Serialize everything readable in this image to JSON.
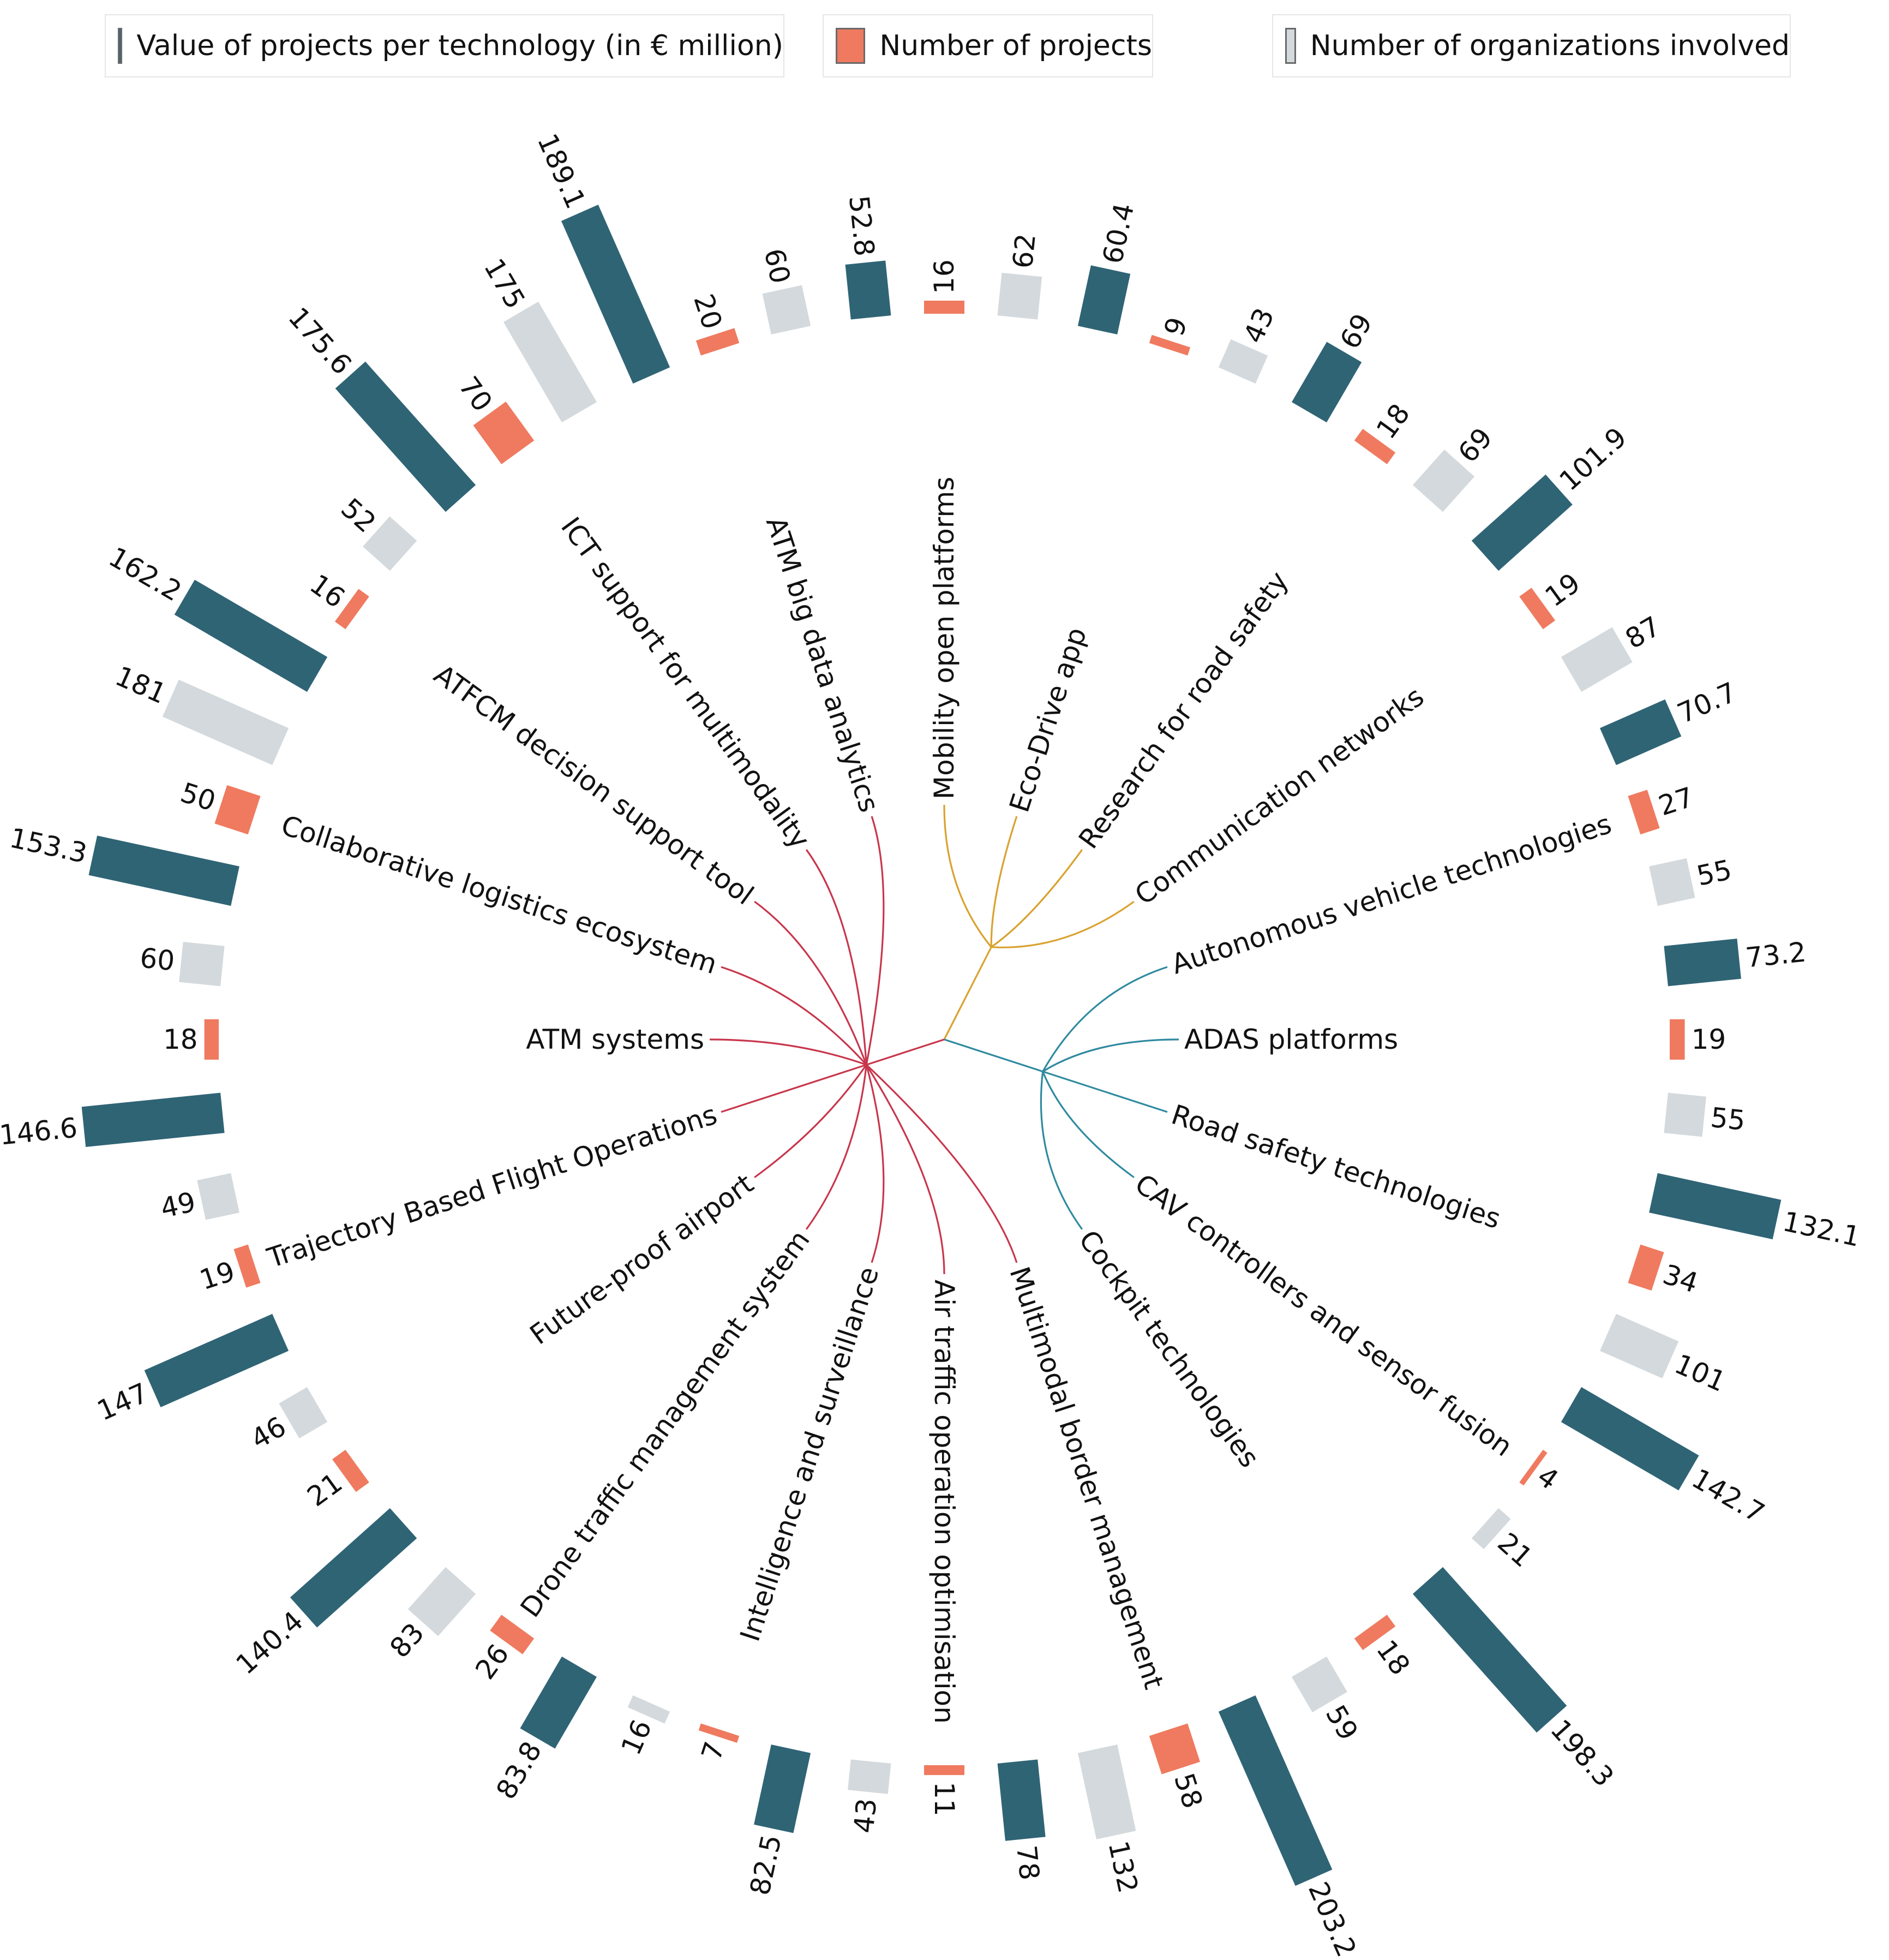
{
  "legend": {
    "value": "Value of projects per technology (in € million)",
    "projects": "Number of projects",
    "organizations": "Number of organizations involved"
  },
  "colors": {
    "value": "#2f6475",
    "projects": "#ef7a5f",
    "organizations": "#d3d9dc",
    "red_group": "#c8364c",
    "yellow_group": "#d9a22f",
    "teal_group": "#2f8aa0"
  },
  "chart_data": {
    "type": "radial-bar",
    "series": [
      {
        "name": "Value of projects per technology (in € million)",
        "key": "value"
      },
      {
        "name": "Number of projects",
        "key": "projects"
      },
      {
        "name": "Number of organizations involved",
        "key": "organizations"
      }
    ],
    "categories": [
      {
        "label": "Mobility open platforms",
        "group": "yellow",
        "value": 52.8,
        "projects": 16,
        "organizations": 62,
        "value_label": "52.8",
        "projects_label": "16",
        "organizations_label": "62"
      },
      {
        "label": "Eco-Drive app",
        "group": "yellow",
        "value": 60.4,
        "projects": 9,
        "organizations": 43,
        "value_label": "60.4",
        "projects_label": "9",
        "organizations_label": "43"
      },
      {
        "label": "Research for road safety",
        "group": "yellow",
        "value": 69,
        "projects": 18,
        "organizations": 69,
        "value_label": "69",
        "projects_label": "18",
        "organizations_label": "69"
      },
      {
        "label": "Communication networks",
        "group": "yellow",
        "value": 101.9,
        "projects": 19,
        "organizations": 87,
        "value_label": "101.9",
        "projects_label": "19",
        "organizations_label": "87"
      },
      {
        "label": "Autonomous vehicle technologies",
        "group": "teal",
        "value": 70.7,
        "projects": 27,
        "organizations": 55,
        "value_label": "70.7",
        "projects_label": "27",
        "organizations_label": "55"
      },
      {
        "label": "ADAS platforms",
        "group": "teal",
        "value": 73.2,
        "projects": 19,
        "organizations": 55,
        "value_label": "73.2",
        "projects_label": "19",
        "organizations_label": "55"
      },
      {
        "label": "Road safety technologies",
        "group": "teal",
        "value": 132.1,
        "projects": 34,
        "organizations": 101,
        "value_label": "132.1",
        "projects_label": "34",
        "organizations_label": "101"
      },
      {
        "label": "CAV controllers and sensor fusion",
        "group": "teal",
        "value": 142.7,
        "projects": 4,
        "organizations": 21,
        "value_label": "142.7",
        "projects_label": "4",
        "organizations_label": "21"
      },
      {
        "label": "Cockpit technologies",
        "group": "teal",
        "value": 198.3,
        "projects": 18,
        "organizations": 59,
        "value_label": "198.3",
        "projects_label": "18",
        "organizations_label": "59"
      },
      {
        "label": "Multimodal border management",
        "group": "red",
        "value": 203.2,
        "projects": 58,
        "organizations": 132,
        "value_label": "203.2",
        "projects_label": "58",
        "organizations_label": "132"
      },
      {
        "label": "Air traffic operation optimisation",
        "group": "red",
        "value": 78,
        "projects": 11,
        "organizations": 43,
        "value_label": "78",
        "projects_label": "11",
        "organizations_label": "43"
      },
      {
        "label": "Intelligence and surveillance",
        "group": "red",
        "value": 82.5,
        "projects": 7,
        "organizations": 16,
        "value_label": "82.5",
        "projects_label": "7",
        "organizations_label": "16"
      },
      {
        "label": "Drone traffic management system",
        "group": "red",
        "value": 83.8,
        "projects": 26,
        "organizations": 83,
        "value_label": "83.8",
        "projects_label": "26",
        "organizations_label": "83"
      },
      {
        "label": "Future-proof airport",
        "group": "red",
        "value": 140.4,
        "projects": 21,
        "organizations": 46,
        "value_label": "140.4",
        "projects_label": "21",
        "organizations_label": "46"
      },
      {
        "label": "Trajectory Based Flight Operations",
        "group": "red",
        "value": 147,
        "projects": 19,
        "organizations": 49,
        "value_label": "147",
        "projects_label": "19",
        "organizations_label": "49"
      },
      {
        "label": "ATM systems",
        "group": "red",
        "value": 146.6,
        "projects": 18,
        "organizations": 60,
        "value_label": "146.6",
        "projects_label": "18",
        "organizations_label": "60"
      },
      {
        "label": "Collaborative logistics ecosystem",
        "group": "red",
        "value": 153.3,
        "projects": 50,
        "organizations": 181,
        "value_label": "153.3",
        "projects_label": "50",
        "organizations_label": "181"
      },
      {
        "label": "ATFCM decision support tool",
        "group": "red",
        "value": 162.2,
        "projects": 16,
        "organizations": 52,
        "value_label": "162.2",
        "projects_label": "16",
        "organizations_label": "52"
      },
      {
        "label": "ICT support for multimodality",
        "group": "red",
        "value": 175.6,
        "projects": 70,
        "organizations": 175,
        "value_label": "175.6",
        "projects_label": "70",
        "organizations_label": "175"
      },
      {
        "label": "ATM big data analytics",
        "group": "red",
        "value": 189.1,
        "projects": 20,
        "organizations": 60,
        "value_label": "189.1",
        "projects_label": "20",
        "organizations_label": "60"
      }
    ]
  }
}
